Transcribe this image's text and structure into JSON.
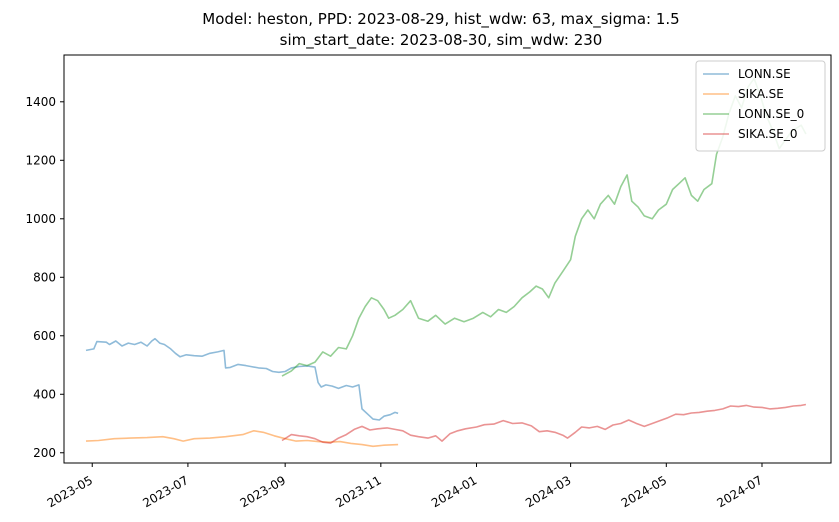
{
  "chart_data": {
    "type": "line",
    "title_line1": "Model: heston, PPD: 2023-08-29, hist_wdw: 63, max_sigma: 1.5",
    "title_line2": "sim_start_date: 2023-08-30, sim_wdw: 230",
    "xlabel": "",
    "ylabel": "",
    "xlim": [
      "2023-04-13",
      "2024-08-14"
    ],
    "ylim": [
      165,
      1560
    ],
    "x_ticks": [
      "2023-05",
      "2023-07",
      "2023-09",
      "2023-11",
      "2024-01",
      "2024-03",
      "2024-05",
      "2024-07"
    ],
    "y_ticks": [
      200,
      400,
      600,
      800,
      1000,
      1200,
      1400
    ],
    "grid": false,
    "legend_position": "top-right",
    "series": [
      {
        "name": "LONN.SE",
        "color": "#1f77b4",
        "points": [
          [
            "2023-04-27",
            550
          ],
          [
            "2023-05-02",
            555
          ],
          [
            "2023-05-04",
            580
          ],
          [
            "2023-05-10",
            578
          ],
          [
            "2023-05-12",
            570
          ],
          [
            "2023-05-16",
            582
          ],
          [
            "2023-05-20",
            565
          ],
          [
            "2023-05-24",
            575
          ],
          [
            "2023-05-28",
            570
          ],
          [
            "2023-06-01",
            578
          ],
          [
            "2023-06-05",
            565
          ],
          [
            "2023-06-08",
            582
          ],
          [
            "2023-06-10",
            590
          ],
          [
            "2023-06-13",
            575
          ],
          [
            "2023-06-16",
            570
          ],
          [
            "2023-06-20",
            555
          ],
          [
            "2023-06-23",
            540
          ],
          [
            "2023-06-26",
            528
          ],
          [
            "2023-06-30",
            535
          ],
          [
            "2023-07-05",
            532
          ],
          [
            "2023-07-10",
            530
          ],
          [
            "2023-07-15",
            540
          ],
          [
            "2023-07-20",
            545
          ],
          [
            "2023-07-24",
            550
          ],
          [
            "2023-07-25",
            490
          ],
          [
            "2023-07-28",
            492
          ],
          [
            "2023-08-02",
            502
          ],
          [
            "2023-08-07",
            498
          ],
          [
            "2023-08-10",
            495
          ],
          [
            "2023-08-15",
            490
          ],
          [
            "2023-08-20",
            488
          ],
          [
            "2023-08-24",
            478
          ],
          [
            "2023-08-28",
            475
          ],
          [
            "2023-09-01",
            478
          ],
          [
            "2023-09-05",
            490
          ],
          [
            "2023-09-10",
            495
          ],
          [
            "2023-09-15",
            497
          ],
          [
            "2023-09-20",
            493
          ],
          [
            "2023-09-22",
            440
          ],
          [
            "2023-09-24",
            425
          ],
          [
            "2023-09-27",
            432
          ],
          [
            "2023-10-01",
            428
          ],
          [
            "2023-10-05",
            420
          ],
          [
            "2023-10-10",
            430
          ],
          [
            "2023-10-14",
            425
          ],
          [
            "2023-10-18",
            432
          ],
          [
            "2023-10-20",
            350
          ],
          [
            "2023-10-24",
            330
          ],
          [
            "2023-10-27",
            315
          ],
          [
            "2023-10-31",
            312
          ],
          [
            "2023-11-03",
            325
          ],
          [
            "2023-11-07",
            330
          ],
          [
            "2023-11-10",
            338
          ],
          [
            "2023-11-12",
            335
          ]
        ]
      },
      {
        "name": "SIKA.SE",
        "color": "#ff7f0e",
        "points": [
          [
            "2023-04-27",
            240
          ],
          [
            "2023-05-05",
            242
          ],
          [
            "2023-05-15",
            248
          ],
          [
            "2023-05-25",
            250
          ],
          [
            "2023-06-05",
            252
          ],
          [
            "2023-06-15",
            255
          ],
          [
            "2023-06-22",
            248
          ],
          [
            "2023-06-28",
            240
          ],
          [
            "2023-07-05",
            248
          ],
          [
            "2023-07-15",
            250
          ],
          [
            "2023-07-25",
            255
          ],
          [
            "2023-08-05",
            262
          ],
          [
            "2023-08-12",
            275
          ],
          [
            "2023-08-18",
            270
          ],
          [
            "2023-08-25",
            258
          ],
          [
            "2023-09-01",
            248
          ],
          [
            "2023-09-08",
            240
          ],
          [
            "2023-09-15",
            242
          ],
          [
            "2023-09-22",
            238
          ],
          [
            "2023-09-29",
            236
          ],
          [
            "2023-10-06",
            238
          ],
          [
            "2023-10-13",
            232
          ],
          [
            "2023-10-20",
            228
          ],
          [
            "2023-10-27",
            222
          ],
          [
            "2023-11-03",
            226
          ],
          [
            "2023-11-12",
            228
          ]
        ]
      },
      {
        "name": "LONN.SE_0",
        "color": "#2ca02c",
        "points": [
          [
            "2023-08-30",
            462
          ],
          [
            "2023-09-05",
            480
          ],
          [
            "2023-09-10",
            505
          ],
          [
            "2023-09-15",
            498
          ],
          [
            "2023-09-20",
            510
          ],
          [
            "2023-09-25",
            545
          ],
          [
            "2023-09-30",
            530
          ],
          [
            "2023-10-05",
            560
          ],
          [
            "2023-10-10",
            555
          ],
          [
            "2023-10-14",
            600
          ],
          [
            "2023-10-18",
            660
          ],
          [
            "2023-10-22",
            700
          ],
          [
            "2023-10-26",
            730
          ],
          [
            "2023-10-30",
            720
          ],
          [
            "2023-11-03",
            690
          ],
          [
            "2023-11-06",
            660
          ],
          [
            "2023-11-10",
            670
          ],
          [
            "2023-11-15",
            690
          ],
          [
            "2023-11-20",
            720
          ],
          [
            "2023-11-25",
            660
          ],
          [
            "2023-12-01",
            650
          ],
          [
            "2023-12-06",
            670
          ],
          [
            "2023-12-12",
            640
          ],
          [
            "2023-12-18",
            660
          ],
          [
            "2023-12-24",
            648
          ],
          [
            "2023-12-30",
            660
          ],
          [
            "2024-01-05",
            680
          ],
          [
            "2024-01-10",
            665
          ],
          [
            "2024-01-15",
            690
          ],
          [
            "2024-01-20",
            680
          ],
          [
            "2024-01-25",
            700
          ],
          [
            "2024-01-30",
            730
          ],
          [
            "2024-02-04",
            750
          ],
          [
            "2024-02-08",
            770
          ],
          [
            "2024-02-12",
            760
          ],
          [
            "2024-02-16",
            730
          ],
          [
            "2024-02-20",
            780
          ],
          [
            "2024-02-25",
            820
          ],
          [
            "2024-03-01",
            860
          ],
          [
            "2024-03-04",
            940
          ],
          [
            "2024-03-08",
            1000
          ],
          [
            "2024-03-12",
            1030
          ],
          [
            "2024-03-16",
            1000
          ],
          [
            "2024-03-20",
            1050
          ],
          [
            "2024-03-25",
            1080
          ],
          [
            "2024-03-29",
            1050
          ],
          [
            "2024-04-02",
            1110
          ],
          [
            "2024-04-06",
            1150
          ],
          [
            "2024-04-09",
            1060
          ],
          [
            "2024-04-13",
            1040
          ],
          [
            "2024-04-17",
            1010
          ],
          [
            "2024-04-22",
            1000
          ],
          [
            "2024-04-26",
            1030
          ],
          [
            "2024-05-01",
            1050
          ],
          [
            "2024-05-05",
            1100
          ],
          [
            "2024-05-09",
            1120
          ],
          [
            "2024-05-13",
            1140
          ],
          [
            "2024-05-17",
            1080
          ],
          [
            "2024-05-21",
            1060
          ],
          [
            "2024-05-25",
            1100
          ],
          [
            "2024-05-30",
            1120
          ],
          [
            "2024-06-02",
            1220
          ],
          [
            "2024-06-06",
            1280
          ],
          [
            "2024-06-10",
            1360
          ],
          [
            "2024-06-14",
            1420
          ],
          [
            "2024-06-18",
            1380
          ],
          [
            "2024-06-22",
            1450
          ],
          [
            "2024-06-26",
            1480
          ],
          [
            "2024-06-30",
            1420
          ],
          [
            "2024-07-04",
            1350
          ],
          [
            "2024-07-08",
            1300
          ],
          [
            "2024-07-12",
            1240
          ],
          [
            "2024-07-16",
            1270
          ],
          [
            "2024-07-20",
            1300
          ],
          [
            "2024-07-26",
            1320
          ],
          [
            "2024-07-29",
            1290
          ]
        ]
      },
      {
        "name": "SIKA.SE_0",
        "color": "#d62728",
        "points": [
          [
            "2023-08-30",
            242
          ],
          [
            "2023-09-05",
            262
          ],
          [
            "2023-09-10",
            258
          ],
          [
            "2023-09-15",
            255
          ],
          [
            "2023-09-20",
            248
          ],
          [
            "2023-09-25",
            236
          ],
          [
            "2023-09-30",
            233
          ],
          [
            "2023-10-05",
            250
          ],
          [
            "2023-10-10",
            262
          ],
          [
            "2023-10-15",
            280
          ],
          [
            "2023-10-20",
            290
          ],
          [
            "2023-10-25",
            278
          ],
          [
            "2023-10-30",
            282
          ],
          [
            "2023-11-05",
            285
          ],
          [
            "2023-11-10",
            280
          ],
          [
            "2023-11-15",
            275
          ],
          [
            "2023-11-20",
            260
          ],
          [
            "2023-11-25",
            255
          ],
          [
            "2023-12-01",
            250
          ],
          [
            "2023-12-06",
            258
          ],
          [
            "2023-12-10",
            240
          ],
          [
            "2023-12-15",
            265
          ],
          [
            "2023-12-20",
            275
          ],
          [
            "2023-12-25",
            282
          ],
          [
            "2024-01-01",
            288
          ],
          [
            "2024-01-06",
            296
          ],
          [
            "2024-01-12",
            298
          ],
          [
            "2024-01-18",
            310
          ],
          [
            "2024-01-24",
            300
          ],
          [
            "2024-01-30",
            302
          ],
          [
            "2024-02-05",
            292
          ],
          [
            "2024-02-10",
            272
          ],
          [
            "2024-02-15",
            275
          ],
          [
            "2024-02-20",
            270
          ],
          [
            "2024-02-25",
            260
          ],
          [
            "2024-02-28",
            250
          ],
          [
            "2024-03-04",
            270
          ],
          [
            "2024-03-08",
            288
          ],
          [
            "2024-03-13",
            285
          ],
          [
            "2024-03-18",
            290
          ],
          [
            "2024-03-23",
            280
          ],
          [
            "2024-03-28",
            295
          ],
          [
            "2024-04-02",
            300
          ],
          [
            "2024-04-07",
            312
          ],
          [
            "2024-04-12",
            300
          ],
          [
            "2024-04-17",
            290
          ],
          [
            "2024-04-22",
            300
          ],
          [
            "2024-04-27",
            310
          ],
          [
            "2024-05-02",
            320
          ],
          [
            "2024-05-07",
            332
          ],
          [
            "2024-05-12",
            330
          ],
          [
            "2024-05-17",
            336
          ],
          [
            "2024-05-22",
            338
          ],
          [
            "2024-05-27",
            342
          ],
          [
            "2024-06-01",
            345
          ],
          [
            "2024-06-06",
            350
          ],
          [
            "2024-06-11",
            360
          ],
          [
            "2024-06-16",
            358
          ],
          [
            "2024-06-21",
            362
          ],
          [
            "2024-06-26",
            356
          ],
          [
            "2024-07-01",
            355
          ],
          [
            "2024-07-06",
            350
          ],
          [
            "2024-07-11",
            352
          ],
          [
            "2024-07-16",
            355
          ],
          [
            "2024-07-21",
            360
          ],
          [
            "2024-07-26",
            362
          ],
          [
            "2024-07-29",
            365
          ]
        ]
      }
    ]
  }
}
